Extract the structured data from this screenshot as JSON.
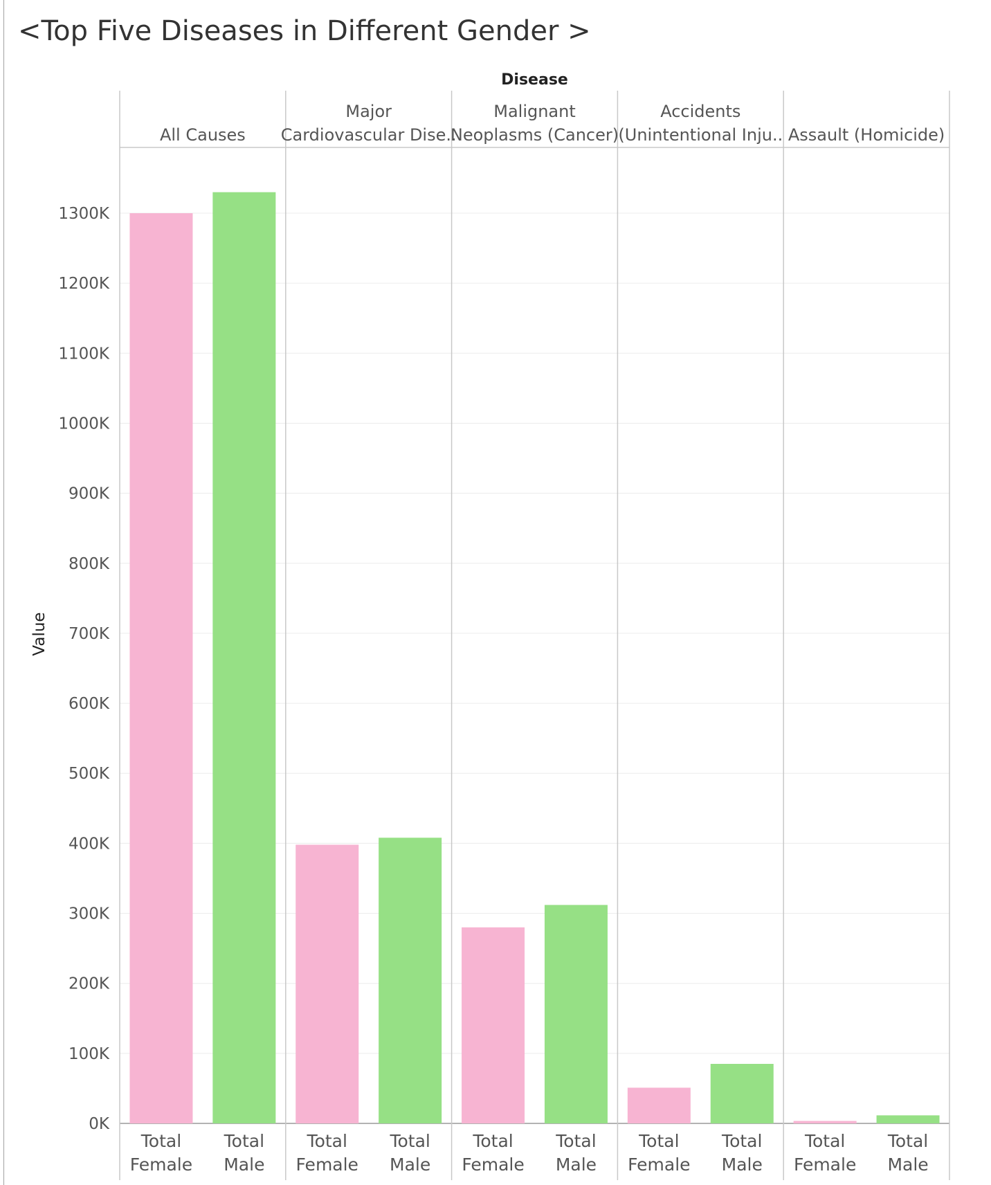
{
  "title": "<Top Five Diseases in Different Gender >",
  "chart_data": {
    "type": "bar",
    "column_header": "Disease",
    "ylabel": "Value",
    "ylim": [
      0,
      1400000
    ],
    "yticks": [
      0,
      100000,
      200000,
      300000,
      400000,
      500000,
      600000,
      700000,
      800000,
      900000,
      1000000,
      1100000,
      1200000,
      1300000
    ],
    "ytick_labels": [
      "0K",
      "100K",
      "200K",
      "300K",
      "400K",
      "500K",
      "600K",
      "700K",
      "800K",
      "900K",
      "1000K",
      "1100K",
      "1200K",
      "1300K"
    ],
    "grid": true,
    "panels": [
      {
        "name_lines": [
          "All Causes"
        ],
        "bars": [
          {
            "label_lines": [
              "Total",
              "Female"
            ],
            "value": 1300000,
            "color": "#f7b4d2"
          },
          {
            "label_lines": [
              "Total",
              "Male"
            ],
            "value": 1330000,
            "color": "#96e085"
          }
        ]
      },
      {
        "name_lines": [
          "Major",
          "Cardiovascular Dise.."
        ],
        "bars": [
          {
            "label_lines": [
              "Total",
              "Female"
            ],
            "value": 398000,
            "color": "#f7b4d2"
          },
          {
            "label_lines": [
              "Total",
              "Male"
            ],
            "value": 408000,
            "color": "#96e085"
          }
        ]
      },
      {
        "name_lines": [
          "Malignant",
          "Neoplasms (Cancer)"
        ],
        "bars": [
          {
            "label_lines": [
              "Total",
              "Female"
            ],
            "value": 280000,
            "color": "#f7b4d2"
          },
          {
            "label_lines": [
              "Total",
              "Male"
            ],
            "value": 312000,
            "color": "#96e085"
          }
        ]
      },
      {
        "name_lines": [
          "Accidents",
          "(Unintentional Inju.."
        ],
        "bars": [
          {
            "label_lines": [
              "Total",
              "Female"
            ],
            "value": 51000,
            "color": "#f7b4d2"
          },
          {
            "label_lines": [
              "Total",
              "Male"
            ],
            "value": 85000,
            "color": "#96e085"
          }
        ]
      },
      {
        "name_lines": [
          "Assault (Homicide)"
        ],
        "bars": [
          {
            "label_lines": [
              "Total",
              "Female"
            ],
            "value": 3500,
            "color": "#f7b4d2"
          },
          {
            "label_lines": [
              "Total",
              "Male"
            ],
            "value": 11500,
            "color": "#96e085"
          }
        ]
      }
    ]
  }
}
